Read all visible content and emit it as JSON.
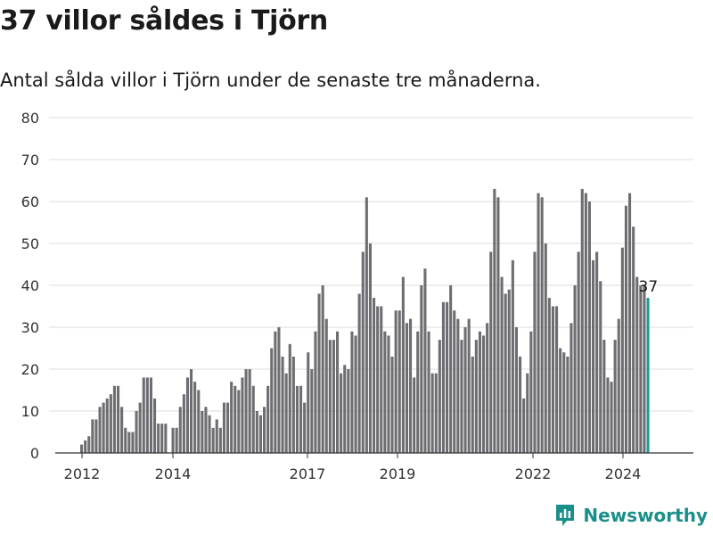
{
  "title": "37 villor såldes i Tjörn",
  "subtitle": "Antal sålda villor i Tjörn under de senaste tre månaderna.",
  "brand": {
    "name": "Newsworthy",
    "icon": "newsworthy-logo-icon",
    "color": "#1a8f89"
  },
  "chart_data": {
    "type": "bar",
    "ylim": [
      0,
      80
    ],
    "yticks": [
      0,
      10,
      20,
      30,
      40,
      50,
      60,
      70,
      80
    ],
    "xticks": [
      "2012",
      "2014",
      "2017",
      "2019",
      "2022",
      "2024"
    ],
    "grid": true,
    "bar_color": "#6e6e72",
    "highlight_color": "#1a9e96",
    "highlight_label": "37",
    "values": [
      2,
      3,
      4,
      8,
      8,
      11,
      12,
      13,
      14,
      16,
      16,
      11,
      6,
      5,
      5,
      10,
      12,
      18,
      18,
      18,
      13,
      7,
      7,
      7,
      null,
      6,
      6,
      11,
      14,
      18,
      20,
      17,
      15,
      10,
      11,
      9,
      6,
      8,
      6,
      12,
      12,
      17,
      16,
      15,
      18,
      20,
      20,
      16,
      10,
      9,
      11,
      16,
      25,
      29,
      30,
      23,
      19,
      26,
      23,
      16,
      16,
      12,
      24,
      20,
      29,
      38,
      40,
      32,
      27,
      27,
      29,
      19,
      21,
      20,
      29,
      28,
      38,
      48,
      61,
      50,
      37,
      35,
      35,
      29,
      28,
      23,
      34,
      34,
      42,
      31,
      32,
      18,
      29,
      40,
      44,
      29,
      19,
      19,
      27,
      36,
      36,
      40,
      34,
      32,
      27,
      30,
      32,
      23,
      27,
      29,
      28,
      31,
      48,
      63,
      61,
      42,
      38,
      39,
      46,
      30,
      23,
      13,
      19,
      29,
      48,
      62,
      61,
      50,
      37,
      35,
      35,
      25,
      24,
      23,
      31,
      40,
      48,
      63,
      62,
      60,
      46,
      48,
      41,
      27,
      18,
      17,
      27,
      32,
      49,
      59,
      62,
      54,
      42,
      40,
      40,
      37
    ]
  }
}
